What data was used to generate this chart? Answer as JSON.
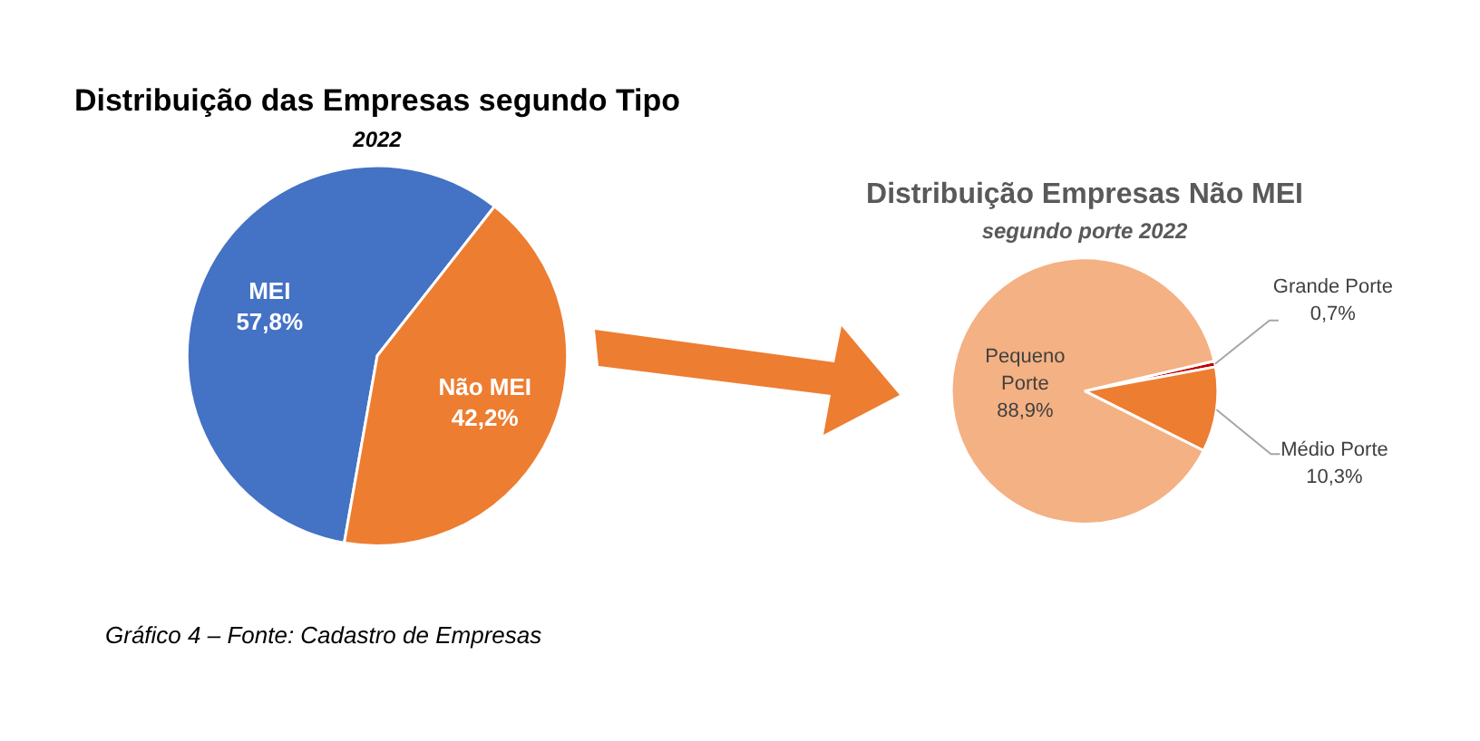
{
  "chart_data": [
    {
      "type": "pie",
      "title": "Distribuição das Empresas segundo Tipo",
      "subtitle": "2022",
      "categories": [
        "MEI",
        "Não MEI"
      ],
      "values": [
        57.8,
        42.2
      ],
      "value_labels": [
        "57,8%",
        "42,2%"
      ],
      "colors": [
        "#4472c4",
        "#ed7d31"
      ],
      "annotations": [
        "Gráfico 4 – Fonte: Cadastro de Empresas"
      ]
    },
    {
      "type": "pie",
      "title": "Distribuição Empresas Não MEI",
      "subtitle": "segundo porte 2022",
      "categories": [
        "Grande Porte",
        "Médio Porte",
        "Pequeno Porte"
      ],
      "values": [
        0.7,
        10.3,
        88.9
      ],
      "value_labels": [
        "0,7%",
        "10,3%",
        "88,9%"
      ],
      "colors": [
        "#c00000",
        "#ed7d31",
        "#f4b183"
      ]
    }
  ]
}
